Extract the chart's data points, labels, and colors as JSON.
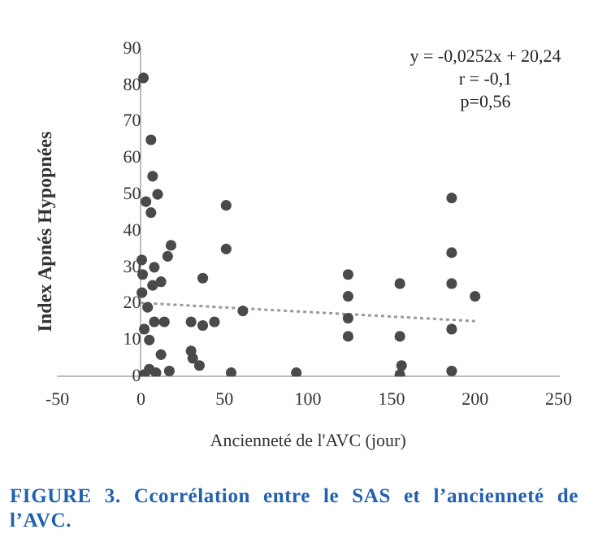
{
  "chart_data": {
    "type": "scatter",
    "xlabel": "Ancienneté de l'AVC (jour)",
    "ylabel": "Index Apnés Hypopnées",
    "xlim": [
      -50,
      250
    ],
    "xticks": [
      -50,
      0,
      50,
      100,
      150,
      200,
      250
    ],
    "ylim": [
      0,
      90
    ],
    "yticks": [
      0,
      10,
      20,
      30,
      40,
      50,
      60,
      70,
      80,
      90
    ],
    "grid": false,
    "legend": false,
    "marker": "circle",
    "series": [
      {
        "type": "scatter",
        "color": "#4a4a4a",
        "x": [
          1.5,
          6,
          7,
          3,
          6,
          10,
          0.5,
          1,
          8,
          12,
          16,
          18,
          51,
          51,
          37,
          61,
          30,
          37,
          44,
          30,
          31,
          35,
          54,
          17,
          12,
          9,
          8,
          14,
          5,
          2,
          4,
          7,
          0.6,
          5,
          2,
          93,
          124,
          124,
          124,
          124,
          155,
          155,
          156,
          155,
          186,
          186,
          186,
          186,
          186,
          200
        ],
        "values": [
          82,
          65,
          55,
          48,
          45,
          50,
          32,
          28,
          30,
          26,
          33,
          36,
          47,
          35,
          27,
          18,
          15,
          14,
          15,
          7,
          5,
          3,
          1,
          1.5,
          6,
          1,
          15,
          15,
          10,
          13,
          19,
          25,
          23,
          2,
          0.5,
          1,
          28,
          22,
          16,
          11,
          25.5,
          11,
          3,
          0.5,
          49,
          34,
          25.5,
          13,
          1.5,
          22
        ]
      },
      {
        "type": "line",
        "color": "#999999",
        "line_style": "dotted",
        "marker": "none",
        "x": [
          0,
          200
        ],
        "values": [
          20.2,
          15.2
        ]
      }
    ],
    "annotations": [
      "y = -0,0252x + 20,24",
      "r = -0,1",
      "p=0,56",
      "FIGURE 3. Ccorrélation entre le SAS et l’ancienneté de l’AVC."
    ]
  }
}
